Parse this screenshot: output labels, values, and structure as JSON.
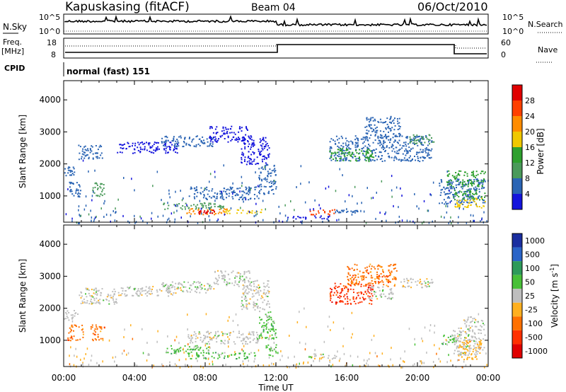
{
  "header": {
    "station": "Kapuskasing (fitACF)",
    "beam": "Beam 04",
    "date": "06/Oct/2010"
  },
  "noise_panel": {
    "left_label": "N.Sky",
    "left_ticks": [
      "10^5",
      "10^0"
    ],
    "right_ticks": [
      "10^5",
      "10^0"
    ],
    "right_label": "N.Search"
  },
  "freq_panel": {
    "left_label_1": "Freq.",
    "left_label_2": "[MHz]",
    "left_ticks": [
      "18",
      "8"
    ],
    "right_ticks": [
      "60",
      "0"
    ],
    "right_label": "Nave"
  },
  "cpid": {
    "label": "CPID",
    "mode": "normal (fast) 151"
  },
  "colors": {
    "power": [
      "#1414dc",
      "#2a64b4",
      "#4a9a5a",
      "#2ea02e",
      "#f0c800",
      "#ff8c00",
      "#ff4000",
      "#e00000"
    ],
    "velocity": [
      "#1a2ea0",
      "#2a64c8",
      "#2e9a5a",
      "#48c038",
      "#bebebe",
      "#ffb020",
      "#ff7000",
      "#ff3000",
      "#e00000"
    ]
  },
  "chart_data": [
    {
      "type": "heatmap",
      "name": "power",
      "xlabel": "",
      "ylabel": "Slant Range [km]",
      "x_ticks": [
        "00:00",
        "04:00",
        "08:00",
        "12:00",
        "16:00",
        "20:00",
        "00:00"
      ],
      "xlim_hours": [
        0,
        24
      ],
      "y_ticks": [
        1000,
        2000,
        3000,
        4000
      ],
      "ylim_km": [
        180,
        4600
      ],
      "colorbar": {
        "label": "Power [dB]",
        "ticks": [
          4,
          8,
          12,
          16,
          20,
          24,
          28
        ],
        "range": [
          0,
          32
        ]
      },
      "regions": [
        {
          "t0": 0.0,
          "t1": 0.6,
          "r0": 1650,
          "r1": 1950,
          "v": 6
        },
        {
          "t0": 0.8,
          "t1": 2.2,
          "r0": 2150,
          "r1": 2600,
          "v": 4
        },
        {
          "t0": 0.3,
          "t1": 1.0,
          "r0": 950,
          "r1": 1450,
          "v": 6
        },
        {
          "t0": 1.6,
          "t1": 2.3,
          "r0": 1000,
          "r1": 1500,
          "v": 10
        },
        {
          "t0": 3.0,
          "t1": 6.5,
          "r0": 2350,
          "r1": 2700,
          "v": 3
        },
        {
          "t0": 5.5,
          "t1": 8.5,
          "r0": 2550,
          "r1": 2900,
          "v": 4
        },
        {
          "t0": 8.2,
          "t1": 10.4,
          "r0": 2700,
          "r1": 3200,
          "v": 3
        },
        {
          "t0": 10.0,
          "t1": 11.6,
          "r0": 2000,
          "r1": 2900,
          "v": 3
        },
        {
          "t0": 11.0,
          "t1": 12.0,
          "r0": 1050,
          "r1": 2000,
          "v": 5
        },
        {
          "t0": 7.0,
          "t1": 11.0,
          "r0": 900,
          "r1": 1300,
          "v": 4
        },
        {
          "t0": 5.6,
          "t1": 9.0,
          "r0": 600,
          "r1": 800,
          "v": 8
        },
        {
          "t0": 6.8,
          "t1": 9.2,
          "r0": 430,
          "r1": 620,
          "v": 22
        },
        {
          "t0": 7.6,
          "t1": 8.6,
          "r0": 460,
          "r1": 580,
          "v": 28
        },
        {
          "t0": 9.0,
          "t1": 11.2,
          "r0": 470,
          "r1": 600,
          "v": 18
        },
        {
          "t0": 13.9,
          "t1": 15.3,
          "r0": 430,
          "r1": 590,
          "v": 24
        },
        {
          "t0": 15.3,
          "t1": 16.6,
          "r0": 490,
          "r1": 580,
          "v": 6
        },
        {
          "t0": 12.3,
          "t1": 15.0,
          "r0": 300,
          "r1": 400,
          "v": 3
        },
        {
          "t0": 15.0,
          "t1": 20.8,
          "r0": 2100,
          "r1": 2900,
          "v": 5
        },
        {
          "t0": 15.0,
          "t1": 17.5,
          "r0": 2100,
          "r1": 2500,
          "v": 12
        },
        {
          "t0": 17.0,
          "t1": 19.0,
          "r0": 2850,
          "r1": 3500,
          "v": 4
        },
        {
          "t0": 19.5,
          "t1": 20.9,
          "r0": 2650,
          "r1": 2950,
          "v": 10
        },
        {
          "t0": 21.2,
          "t1": 23.8,
          "r0": 750,
          "r1": 1550,
          "v": 6
        },
        {
          "t0": 21.6,
          "t1": 23.8,
          "r0": 1300,
          "r1": 1800,
          "v": 12
        },
        {
          "t0": 22.0,
          "t1": 23.8,
          "r0": 650,
          "r1": 950,
          "v": 18
        },
        {
          "t0": 22.0,
          "t1": 23.8,
          "r0": 900,
          "r1": 1200,
          "v": 14
        }
      ]
    },
    {
      "type": "heatmap",
      "name": "velocity",
      "xlabel": "Time UT",
      "ylabel": "Slant Range [km]",
      "x_ticks": [
        "00:00",
        "04:00",
        "08:00",
        "12:00",
        "16:00",
        "20:00",
        "00:00"
      ],
      "xlim_hours": [
        0,
        24
      ],
      "y_ticks": [
        1000,
        2000,
        3000,
        4000
      ],
      "ylim_km": [
        180,
        4600
      ],
      "colorbar": {
        "label": "Velocity [m s",
        "label_sup": "-1",
        "label_end": "]",
        "ticks": [
          "1000",
          "500",
          "100",
          "50",
          "25",
          "-25",
          "-100",
          "-500",
          "-1000"
        ]
      },
      "regions": [
        {
          "t0": 0.0,
          "t1": 0.8,
          "r0": 1650,
          "r1": 1950,
          "c": 4
        },
        {
          "t0": 0.8,
          "t1": 3.0,
          "r0": 2150,
          "r1": 2650,
          "c": 4
        },
        {
          "t0": 0.2,
          "t1": 1.1,
          "r0": 1000,
          "r1": 1500,
          "c": 6
        },
        {
          "t0": 1.5,
          "t1": 2.3,
          "r0": 1000,
          "r1": 1500,
          "c": 6
        },
        {
          "t0": 3.0,
          "t1": 6.5,
          "r0": 2400,
          "r1": 2700,
          "c": 4
        },
        {
          "t0": 5.5,
          "t1": 8.5,
          "r0": 2500,
          "r1": 2850,
          "c": 4
        },
        {
          "t0": 8.5,
          "t1": 10.5,
          "r0": 2700,
          "r1": 3200,
          "c": 4
        },
        {
          "t0": 10.0,
          "t1": 11.6,
          "r0": 1950,
          "r1": 2900,
          "c": 4
        },
        {
          "t0": 11.0,
          "t1": 12.0,
          "r0": 1050,
          "r1": 1950,
          "c": 3
        },
        {
          "t0": 7.0,
          "t1": 11.0,
          "r0": 900,
          "r1": 1300,
          "c": 4
        },
        {
          "t0": 5.6,
          "t1": 8.2,
          "r0": 600,
          "r1": 850,
          "c": 3
        },
        {
          "t0": 7.0,
          "t1": 10.8,
          "r0": 440,
          "r1": 640,
          "c": 3
        },
        {
          "t0": 11.4,
          "t1": 12.0,
          "r0": 500,
          "r1": 900,
          "c": 3
        },
        {
          "t0": 13.9,
          "t1": 15.4,
          "r0": 430,
          "r1": 600,
          "c": 4
        },
        {
          "t0": 15.0,
          "t1": 17.5,
          "r0": 2150,
          "r1": 2800,
          "c": 7
        },
        {
          "t0": 16.0,
          "t1": 18.8,
          "r0": 2700,
          "r1": 3400,
          "c": 6
        },
        {
          "t0": 17.2,
          "t1": 18.6,
          "r0": 2300,
          "r1": 2700,
          "c": 4
        },
        {
          "t0": 19.0,
          "t1": 20.9,
          "r0": 2650,
          "r1": 2950,
          "c": 4
        },
        {
          "t0": 21.3,
          "t1": 22.2,
          "r0": 900,
          "r1": 1200,
          "c": 3
        },
        {
          "t0": 22.0,
          "t1": 23.8,
          "r0": 550,
          "r1": 1450,
          "c": 4
        },
        {
          "t0": 22.3,
          "t1": 23.6,
          "r0": 400,
          "r1": 1000,
          "c": 5
        },
        {
          "t0": 22.6,
          "t1": 23.8,
          "r0": 1450,
          "r1": 1750,
          "c": 4
        }
      ]
    }
  ]
}
